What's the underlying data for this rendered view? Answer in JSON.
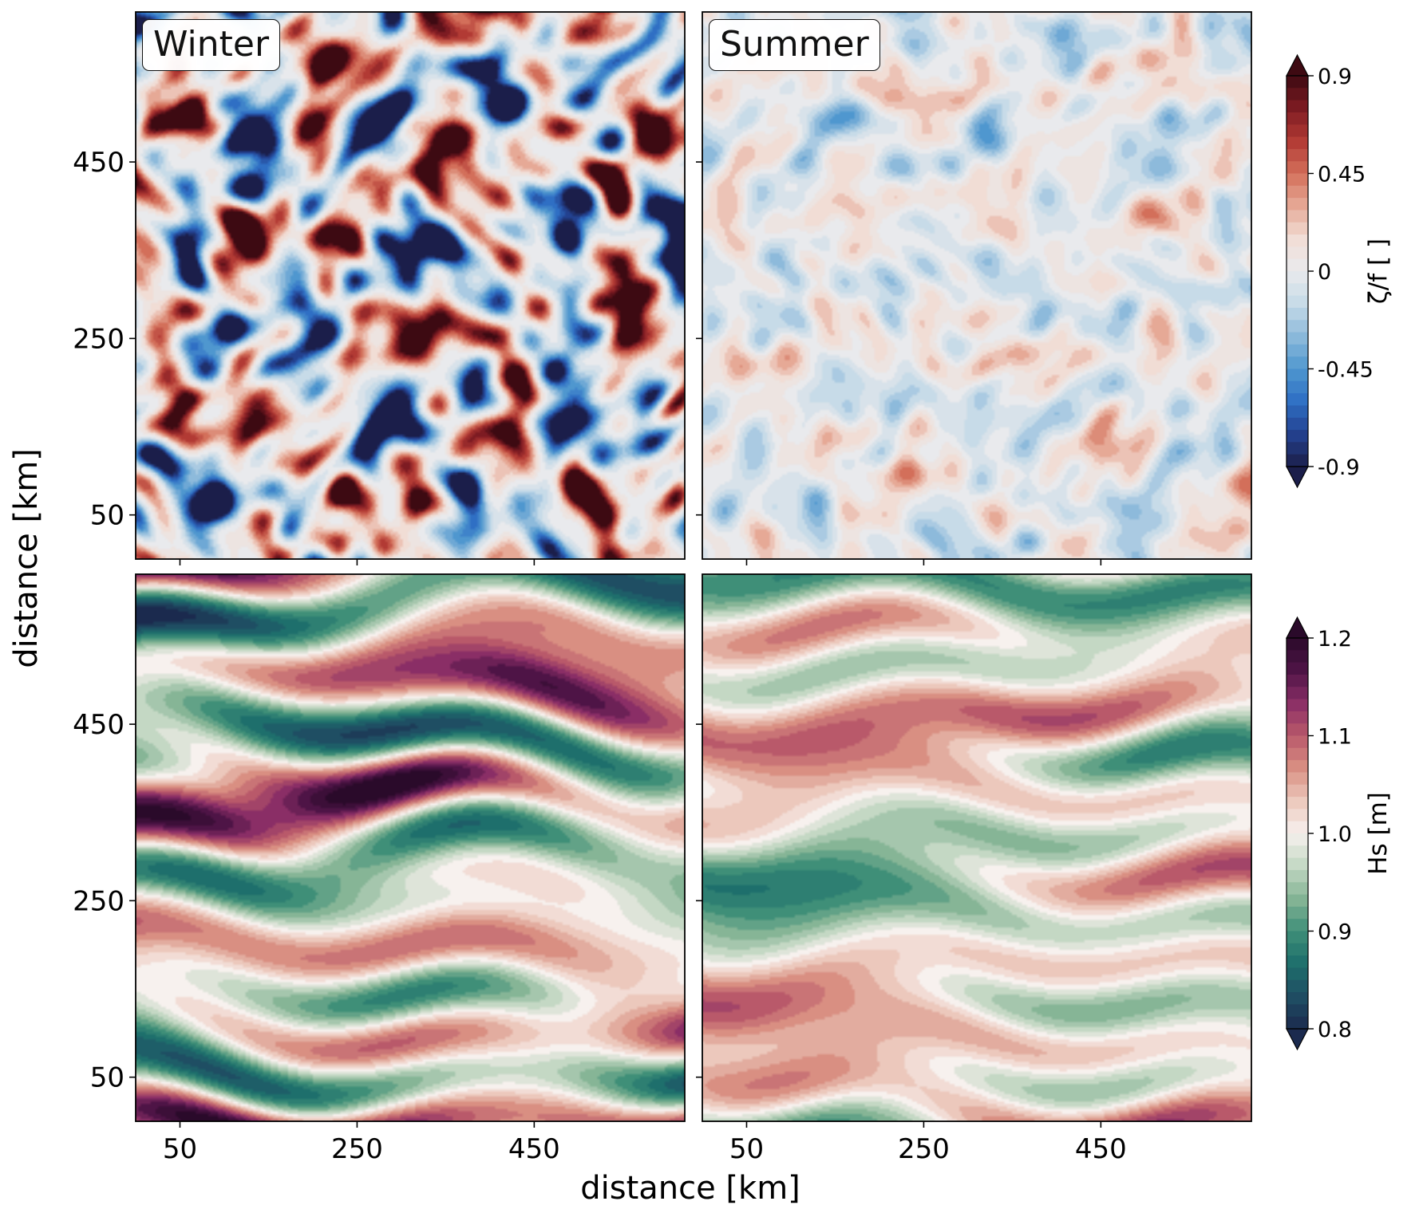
{
  "chart_data": {
    "type": "heatmap",
    "description_layout": "2x2 grid of filled-contour fields",
    "xlabel": "distance [km]",
    "ylabel": "distance [km]",
    "xlim": [
      0,
      620
    ],
    "ylim": [
      0,
      620
    ],
    "x_ticks": [
      50,
      250,
      450
    ],
    "y_ticks": [
      50,
      250,
      450
    ],
    "columns": [
      "Winter",
      "Summer"
    ],
    "rows": [
      {
        "variable": "zeta_over_f",
        "colorbar_label": "ζ/f  [ ]",
        "colorbar_ticks": [
          "0.9",
          "0.45",
          "0",
          "-0.45",
          "-0.9"
        ],
        "colorbar_range": [
          -0.9,
          0.9
        ],
        "colormap_colors": [
          "#1b1e4a",
          "#23418f",
          "#2f6fc4",
          "#4f97cf",
          "#8dbadb",
          "#c7dbe8",
          "#e9eaed",
          "#f1ddd5",
          "#e6a996",
          "#d36f5a",
          "#b23a34",
          "#7d1b22",
          "#3d0a12"
        ],
        "extend": "both",
        "panels": [
          {
            "season": "Winter",
            "amplitude": 0.85,
            "scale": "fine-filamentary"
          },
          {
            "season": "Summer",
            "amplitude": 0.22,
            "scale": "fine-weak"
          }
        ]
      },
      {
        "variable": "Hs",
        "colorbar_label": "Hs [m]",
        "colorbar_ticks": [
          "1.2",
          "1.1",
          "1.0",
          "0.9",
          "0.8"
        ],
        "colorbar_range": [
          0.8,
          1.2
        ],
        "colormap_colors": [
          "#1b2a4e",
          "#1f4e63",
          "#1e6f6c",
          "#3f8f78",
          "#86b596",
          "#c4d8c4",
          "#f7f1ee",
          "#ecc8bc",
          "#d98f82",
          "#b9596a",
          "#8a2e66",
          "#4e1446",
          "#2a0a2a"
        ],
        "extend": "both",
        "panels": [
          {
            "season": "Winter",
            "amplitude": 0.14,
            "scale": "zonally-elongated"
          },
          {
            "season": "Summer",
            "amplitude": 0.08,
            "scale": "zonally-elongated"
          }
        ]
      }
    ]
  }
}
